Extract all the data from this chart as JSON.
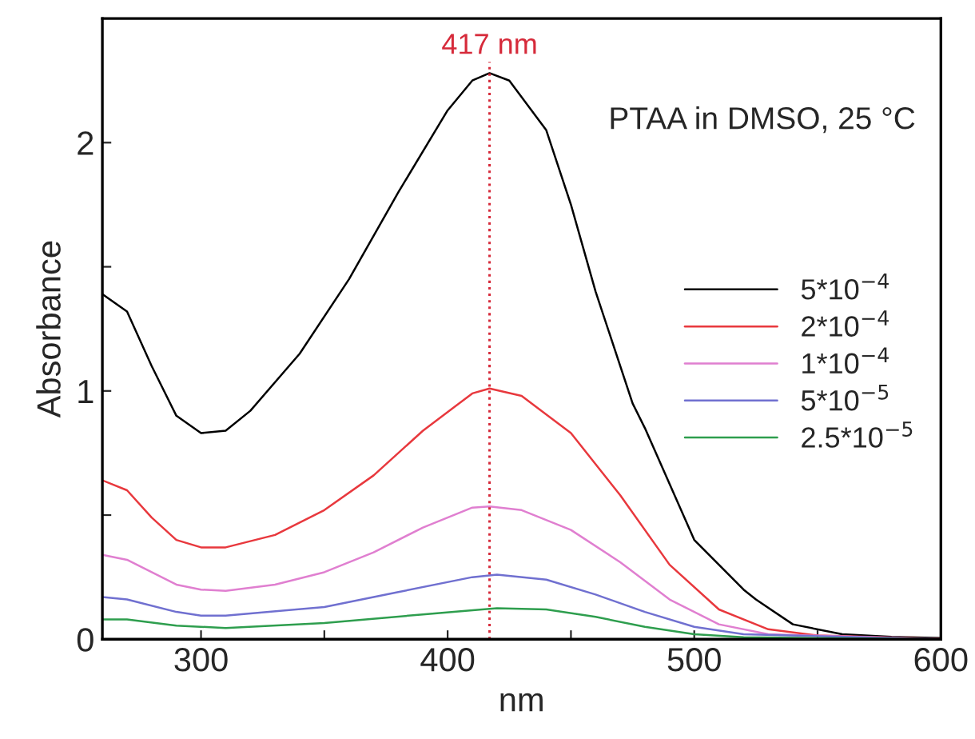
{
  "chart_data": {
    "type": "line",
    "xlabel": "nm",
    "ylabel": "Absorbance",
    "annotations": [
      "PTAA in DMSO, 25 °C"
    ],
    "xlim": [
      260,
      600
    ],
    "ylim": [
      0,
      2.5
    ],
    "xticks": [
      300,
      {
        "value": 350,
        "label": null
      },
      400,
      {
        "value": 450,
        "label": null
      },
      500,
      {
        "value": 550,
        "label": null
      },
      600
    ],
    "yticks": [
      0,
      {
        "value": 0.5,
        "label": null
      },
      1,
      {
        "value": 1.5,
        "label": null
      },
      2
    ],
    "ref_lines": [
      {
        "axis": "x",
        "value": 417,
        "label": "417 nm",
        "color": "#d62a3a",
        "line_style": "dotted"
      }
    ],
    "legend": "right",
    "grid": false,
    "marker": "none",
    "line_style": "solid",
    "series": [
      {
        "name": "5*10$^{−4}$",
        "color": "#000000",
        "x": [
          260,
          270,
          280,
          290,
          300,
          310,
          320,
          340,
          360,
          380,
          400,
          410,
          417,
          425,
          440,
          450,
          460,
          475,
          480,
          500,
          520,
          525,
          540,
          560,
          580,
          600
        ],
        "values": [
          1.39,
          1.32,
          1.1,
          0.9,
          0.83,
          0.84,
          0.92,
          1.15,
          1.45,
          1.8,
          2.13,
          2.25,
          2.28,
          2.25,
          2.05,
          1.75,
          1.4,
          0.95,
          0.85,
          0.4,
          0.2,
          0.16,
          0.06,
          0.02,
          0.01,
          0.005
        ]
      },
      {
        "name": "2*10$^{−4}$",
        "color": "#e8383d",
        "x": [
          260,
          270,
          280,
          290,
          300,
          310,
          330,
          350,
          370,
          390,
          410,
          417,
          430,
          450,
          470,
          490,
          510,
          530,
          550,
          600
        ],
        "values": [
          0.64,
          0.6,
          0.49,
          0.4,
          0.37,
          0.37,
          0.42,
          0.52,
          0.66,
          0.84,
          0.99,
          1.01,
          0.98,
          0.83,
          0.58,
          0.3,
          0.12,
          0.04,
          0.015,
          0.002
        ]
      },
      {
        "name": "1*10$^{−4}$",
        "color": "#e07fd0",
        "x": [
          260,
          270,
          290,
          300,
          310,
          330,
          350,
          370,
          390,
          410,
          417,
          430,
          450,
          470,
          490,
          510,
          530,
          600
        ],
        "values": [
          0.34,
          0.32,
          0.22,
          0.2,
          0.195,
          0.22,
          0.27,
          0.35,
          0.45,
          0.53,
          0.535,
          0.52,
          0.44,
          0.31,
          0.16,
          0.06,
          0.02,
          0.0
        ]
      },
      {
        "name": "5*10$^{−5}$",
        "color": "#7070d0",
        "x": [
          260,
          270,
          290,
          300,
          310,
          350,
          380,
          410,
          420,
          440,
          460,
          480,
          500,
          520,
          600
        ],
        "values": [
          0.17,
          0.16,
          0.11,
          0.095,
          0.095,
          0.13,
          0.19,
          0.25,
          0.26,
          0.24,
          0.18,
          0.11,
          0.05,
          0.02,
          0.0
        ]
      },
      {
        "name": "2.5*10$^{−5}$",
        "color": "#2e9e4e",
        "x": [
          260,
          270,
          290,
          310,
          350,
          390,
          420,
          440,
          460,
          480,
          500,
          520,
          600
        ],
        "values": [
          0.08,
          0.08,
          0.055,
          0.045,
          0.065,
          0.1,
          0.125,
          0.12,
          0.09,
          0.05,
          0.02,
          0.008,
          0.0
        ]
      }
    ]
  }
}
